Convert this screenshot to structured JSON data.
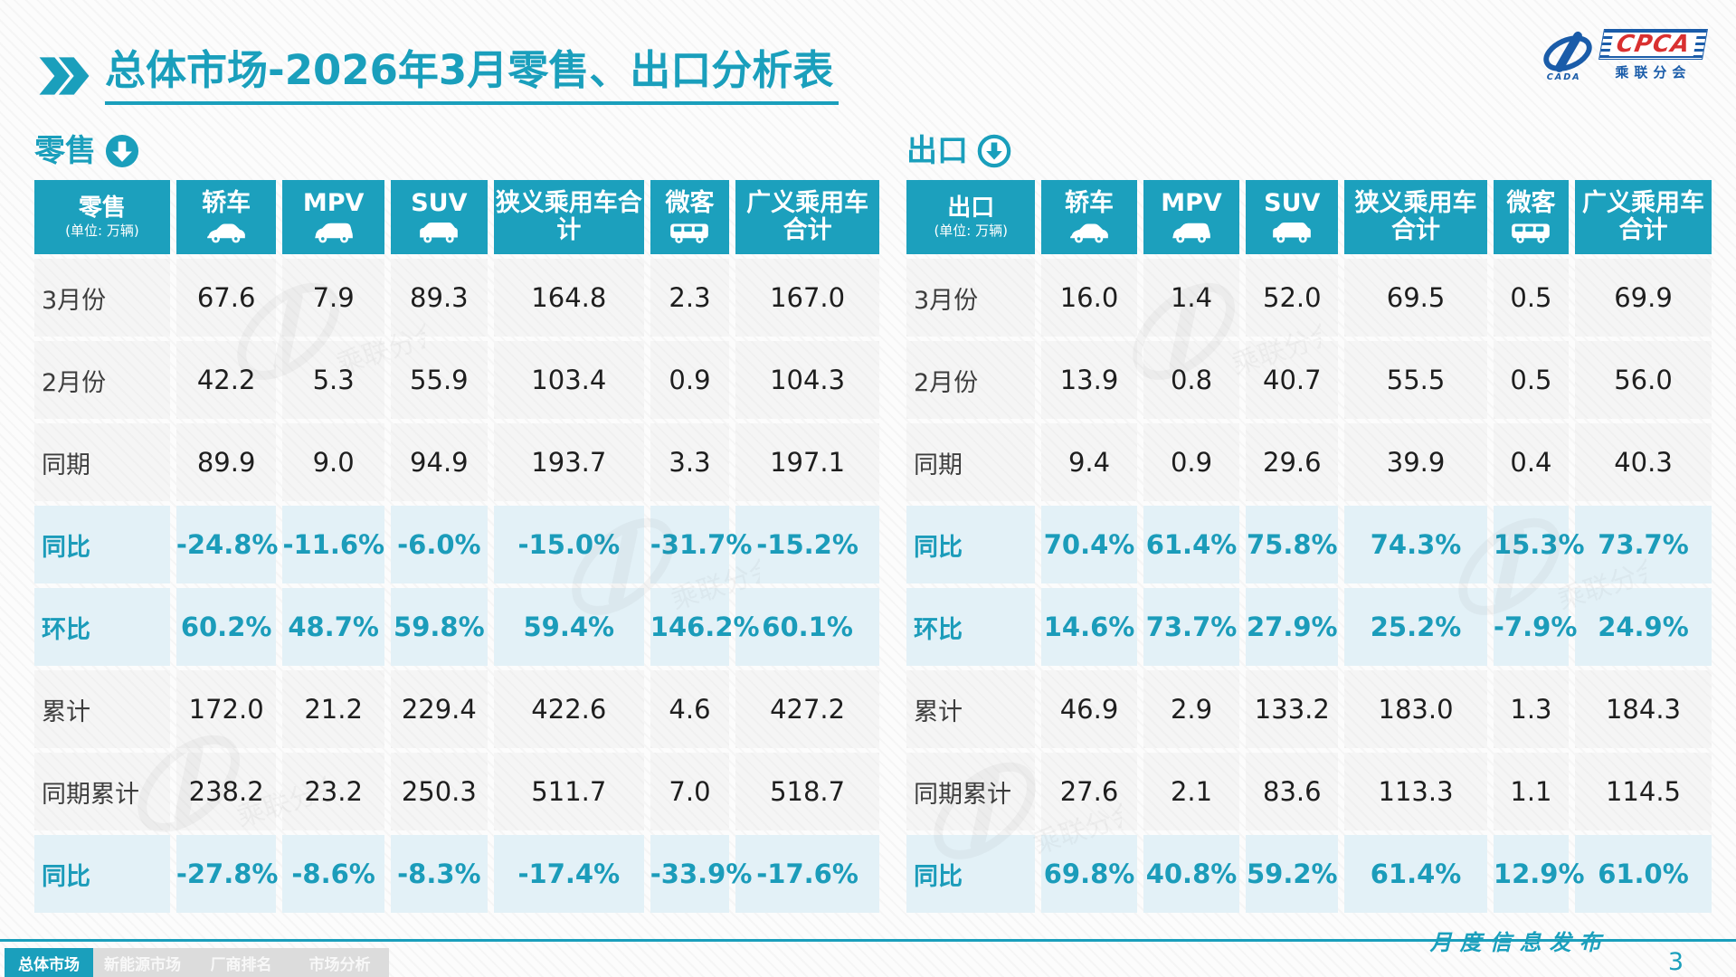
{
  "title": {
    "main": "总体市场",
    "rest": "-2026年3月零售、出口分析表"
  },
  "logo": {
    "acronym": "CPCA",
    "cn": "乘联分会",
    "sub": "CADA"
  },
  "colors": {
    "teal": "#1CA0BD",
    "teal_text": "#1B9CBA",
    "pct_row_bg": "#E3F1F7",
    "row_bg": "#F5F5F5",
    "logo_blue": "#1A5CA9",
    "logo_red": "#D93030"
  },
  "icons": {
    "title_icon": "double-chevron-icon",
    "retail_section_icon": "arrow-down-circle-filled-icon",
    "export_section_icon": "arrow-down-circle-outline-icon",
    "column_icons": [
      "sedan-car-icon",
      "mpv-car-icon",
      "suv-car-icon",
      null,
      "minivan-icon",
      null
    ]
  },
  "sections": [
    {
      "label": "零售",
      "unit_label": "(单位: 万辆)",
      "columns": [
        "轿车",
        "MPV",
        "SUV",
        "狭义乘用车合计",
        "微客",
        "广义乘用车合计"
      ],
      "rows": [
        {
          "label": "3月份",
          "type": "num",
          "values": [
            "67.6",
            "7.9",
            "89.3",
            "164.8",
            "2.3",
            "167.0"
          ]
        },
        {
          "label": "2月份",
          "type": "num",
          "values": [
            "42.2",
            "5.3",
            "55.9",
            "103.4",
            "0.9",
            "104.3"
          ]
        },
        {
          "label": "同期",
          "type": "num",
          "values": [
            "89.9",
            "9.0",
            "94.9",
            "193.7",
            "3.3",
            "197.1"
          ]
        },
        {
          "label": "同比",
          "type": "pct",
          "values": [
            "-24.8%",
            "-11.6%",
            "-6.0%",
            "-15.0%",
            "-31.7%",
            "-15.2%"
          ]
        },
        {
          "label": "环比",
          "type": "pct",
          "values": [
            "60.2%",
            "48.7%",
            "59.8%",
            "59.4%",
            "146.2%",
            "60.1%"
          ]
        },
        {
          "label": "累计",
          "type": "num",
          "values": [
            "172.0",
            "21.2",
            "229.4",
            "422.6",
            "4.6",
            "427.2"
          ]
        },
        {
          "label": "同期累计",
          "type": "num",
          "values": [
            "238.2",
            "23.2",
            "250.3",
            "511.7",
            "7.0",
            "518.7"
          ]
        },
        {
          "label": "同比",
          "type": "pct",
          "values": [
            "-27.8%",
            "-8.6%",
            "-8.3%",
            "-17.4%",
            "-33.9%",
            "-17.6%"
          ]
        }
      ]
    },
    {
      "label": "出口",
      "unit_label": "(单位: 万辆)",
      "columns": [
        "轿车",
        "MPV",
        "SUV",
        "狭义乘用车合计",
        "微客",
        "广义乘用车合计"
      ],
      "rows": [
        {
          "label": "3月份",
          "type": "num",
          "values": [
            "16.0",
            "1.4",
            "52.0",
            "69.5",
            "0.5",
            "69.9"
          ]
        },
        {
          "label": "2月份",
          "type": "num",
          "values": [
            "13.9",
            "0.8",
            "40.7",
            "55.5",
            "0.5",
            "56.0"
          ]
        },
        {
          "label": "同期",
          "type": "num",
          "values": [
            "9.4",
            "0.9",
            "29.6",
            "39.9",
            "0.4",
            "40.3"
          ]
        },
        {
          "label": "同比",
          "type": "pct",
          "values": [
            "70.4%",
            "61.4%",
            "75.8%",
            "74.3%",
            "15.3%",
            "73.7%"
          ]
        },
        {
          "label": "环比",
          "type": "pct",
          "values": [
            "14.6%",
            "73.7%",
            "27.9%",
            "25.2%",
            "-7.9%",
            "24.9%"
          ]
        },
        {
          "label": "累计",
          "type": "num",
          "values": [
            "46.9",
            "2.9",
            "133.2",
            "183.0",
            "1.3",
            "184.3"
          ]
        },
        {
          "label": "同期累计",
          "type": "num",
          "values": [
            "27.6",
            "2.1",
            "83.6",
            "113.3",
            "1.1",
            "114.5"
          ]
        },
        {
          "label": "同比",
          "type": "pct",
          "values": [
            "69.8%",
            "40.8%",
            "59.2%",
            "61.4%",
            "12.9%",
            "61.0%"
          ]
        }
      ]
    }
  ],
  "footer": {
    "tabs": [
      {
        "label": "总体市场",
        "active": true
      },
      {
        "label": "新能源市场",
        "active": false
      },
      {
        "label": "厂商排名",
        "active": false
      },
      {
        "label": "市场分析",
        "active": false
      }
    ],
    "publication": "月度信息发布",
    "page": "3"
  }
}
